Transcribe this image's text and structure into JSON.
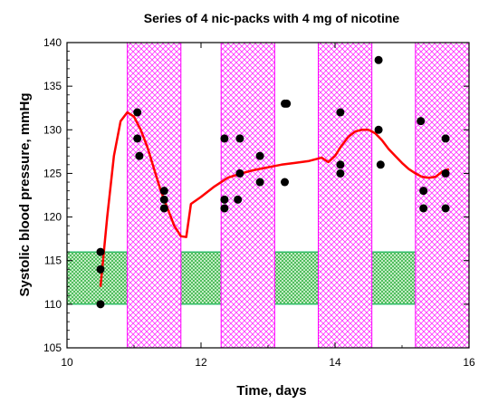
{
  "chart_data": {
    "type": "scatter",
    "title": "Series of 4 nic-packs with 4 mg of nicotine",
    "xlabel": "Time, days",
    "ylabel": "Systolic blood pressure, mmHg",
    "xlim": [
      10,
      16
    ],
    "ylim": [
      105,
      140
    ],
    "xticks": [
      10,
      12,
      14,
      16
    ],
    "yticks": [
      105,
      110,
      115,
      120,
      125,
      130,
      135,
      140
    ],
    "grid": false,
    "legend": "none",
    "nicotine_periods": [
      [
        10.9,
        11.7
      ],
      [
        12.3,
        13.1
      ],
      [
        13.75,
        14.55
      ],
      [
        15.2,
        16.0
      ]
    ],
    "normal_range": [
      110,
      116
    ],
    "points": [
      {
        "x": 10.5,
        "y": 116
      },
      {
        "x": 10.5,
        "y": 114
      },
      {
        "x": 10.5,
        "y": 110
      },
      {
        "x": 11.05,
        "y": 132
      },
      {
        "x": 11.05,
        "y": 129
      },
      {
        "x": 11.08,
        "y": 127
      },
      {
        "x": 11.45,
        "y": 123
      },
      {
        "x": 11.45,
        "y": 122
      },
      {
        "x": 11.45,
        "y": 121
      },
      {
        "x": 12.35,
        "y": 129
      },
      {
        "x": 12.35,
        "y": 122
      },
      {
        "x": 12.35,
        "y": 121
      },
      {
        "x": 12.58,
        "y": 129
      },
      {
        "x": 12.58,
        "y": 125
      },
      {
        "x": 12.55,
        "y": 122
      },
      {
        "x": 12.88,
        "y": 127
      },
      {
        "x": 12.88,
        "y": 124
      },
      {
        "x": 13.25,
        "y": 133
      },
      {
        "x": 13.28,
        "y": 133
      },
      {
        "x": 13.25,
        "y": 124
      },
      {
        "x": 14.08,
        "y": 132
      },
      {
        "x": 14.08,
        "y": 126
      },
      {
        "x": 14.08,
        "y": 125
      },
      {
        "x": 14.65,
        "y": 138
      },
      {
        "x": 14.65,
        "y": 130
      },
      {
        "x": 14.68,
        "y": 126
      },
      {
        "x": 15.28,
        "y": 131
      },
      {
        "x": 15.32,
        "y": 123
      },
      {
        "x": 15.32,
        "y": 121
      },
      {
        "x": 15.65,
        "y": 129
      },
      {
        "x": 15.65,
        "y": 125
      },
      {
        "x": 15.65,
        "y": 121
      }
    ],
    "fit_line": [
      [
        10.5,
        112
      ],
      [
        10.6,
        120
      ],
      [
        10.7,
        127
      ],
      [
        10.8,
        131
      ],
      [
        10.9,
        132
      ],
      [
        11.0,
        131.5
      ],
      [
        11.1,
        130
      ],
      [
        11.2,
        128
      ],
      [
        11.3,
        125.5
      ],
      [
        11.4,
        123
      ],
      [
        11.5,
        121
      ],
      [
        11.6,
        119
      ],
      [
        11.7,
        117.8
      ],
      [
        11.78,
        117.7
      ],
      [
        11.85,
        121.5
      ],
      [
        12.0,
        122.3
      ],
      [
        12.2,
        123.5
      ],
      [
        12.4,
        124.5
      ],
      [
        12.6,
        125
      ],
      [
        12.8,
        125.4
      ],
      [
        13.0,
        125.7
      ],
      [
        13.2,
        126
      ],
      [
        13.4,
        126.2
      ],
      [
        13.6,
        126.4
      ],
      [
        13.8,
        126.8
      ],
      [
        13.9,
        126.3
      ],
      [
        14.0,
        127
      ],
      [
        14.1,
        128.2
      ],
      [
        14.2,
        129.2
      ],
      [
        14.3,
        129.8
      ],
      [
        14.4,
        130
      ],
      [
        14.5,
        130
      ],
      [
        14.6,
        129.6
      ],
      [
        14.7,
        128.8
      ],
      [
        14.8,
        127.8
      ],
      [
        14.9,
        127
      ],
      [
        15.0,
        126.2
      ],
      [
        15.1,
        125.5
      ],
      [
        15.2,
        125
      ],
      [
        15.3,
        124.6
      ],
      [
        15.4,
        124.5
      ],
      [
        15.5,
        124.6
      ],
      [
        15.6,
        125.2
      ],
      [
        15.7,
        125.5
      ]
    ],
    "colors": {
      "points": "#000000",
      "fit_line": "#ff0000",
      "nicotine_band": "#ff00ff",
      "normal_band": "#00b050"
    }
  }
}
